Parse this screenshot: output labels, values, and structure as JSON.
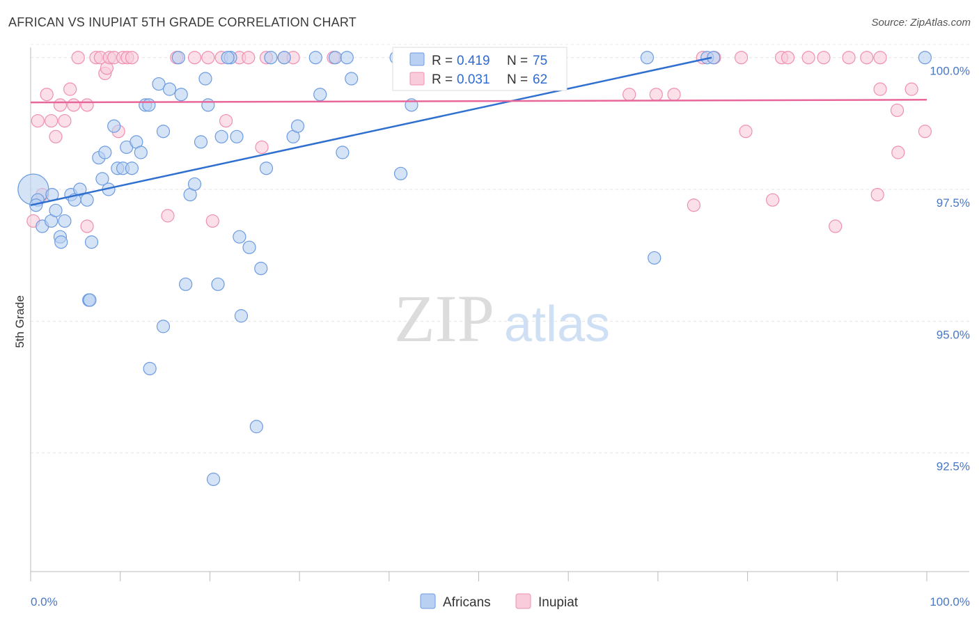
{
  "header": {
    "title": "AFRICAN VS INUPIAT 5TH GRADE CORRELATION CHART",
    "source": "Source: ZipAtlas.com"
  },
  "watermark": {
    "zip": "ZIP",
    "atlas": "atlas"
  },
  "colors": {
    "africans": "#6c9be0",
    "africans_fill": "#b9d0f2",
    "inupiat": "#f08fb0",
    "inupiat_fill": "#f9ccdb",
    "africans_line": "#2f6fd0",
    "inupiat_line": "#e8679a",
    "tick_label": "#4a77c4"
  },
  "legend": {
    "africans": {
      "r_label": "R = ",
      "r_value": "0.419",
      "n_label": "N = ",
      "n_value": "75"
    },
    "inupiat": {
      "r_label": "R = ",
      "r_value": "0.031",
      "n_label": "N = ",
      "n_value": "62"
    }
  },
  "chart_data": {
    "type": "scatter",
    "title": "AFRICAN VS INUPIAT 5TH GRADE CORRELATION CHART",
    "xlabel": "",
    "ylabel": "5th Grade",
    "xlim": [
      0,
      100
    ],
    "ylim": [
      90.25,
      100.3
    ],
    "x_tick_labels": [
      "0.0%",
      "100.0%"
    ],
    "y_ticks": [
      {
        "value": 100.0,
        "label": "100.0%"
      },
      {
        "value": 97.5,
        "label": "97.5%"
      },
      {
        "value": 95.0,
        "label": "95.0%"
      },
      {
        "value": 92.5,
        "label": "92.5%"
      }
    ],
    "grid": true,
    "legend_position": "top-center",
    "bottom_legend": [
      "Africans",
      "Inupiat"
    ],
    "series": [
      {
        "name": "Africans",
        "trend": [
          [
            0,
            97.2
          ],
          [
            76,
            100.0
          ]
        ],
        "points": [
          [
            0.3,
            97.5
          ],
          [
            0.8,
            97.3
          ],
          [
            1.3,
            96.8
          ],
          [
            2.4,
            97.4
          ],
          [
            2.3,
            96.9
          ],
          [
            2.8,
            97.1
          ],
          [
            3.3,
            96.6
          ],
          [
            3.8,
            96.9
          ],
          [
            4.5,
            97.4
          ],
          [
            4.9,
            97.3
          ],
          [
            5.5,
            97.5
          ],
          [
            6.3,
            97.3
          ],
          [
            6.8,
            96.5
          ],
          [
            6.5,
            95.4
          ],
          [
            7.6,
            98.1
          ],
          [
            8.0,
            97.7
          ],
          [
            8.3,
            98.2
          ],
          [
            8.7,
            97.5
          ],
          [
            9.3,
            98.7
          ],
          [
            9.7,
            97.9
          ],
          [
            10.3,
            97.9
          ],
          [
            10.7,
            98.3
          ],
          [
            11.3,
            97.9
          ],
          [
            11.8,
            98.4
          ],
          [
            12.3,
            98.2
          ],
          [
            12.8,
            99.1
          ],
          [
            13.2,
            99.1
          ],
          [
            14.3,
            99.5
          ],
          [
            14.8,
            98.6
          ],
          [
            15.5,
            99.4
          ],
          [
            16.5,
            100.0
          ],
          [
            16.8,
            99.3
          ],
          [
            17.3,
            95.7
          ],
          [
            17.8,
            97.4
          ],
          [
            18.3,
            97.6
          ],
          [
            19.0,
            98.4
          ],
          [
            19.5,
            99.6
          ],
          [
            19.8,
            99.1
          ],
          [
            20.4,
            92.0
          ],
          [
            20.9,
            95.7
          ],
          [
            21.3,
            98.5
          ],
          [
            22.3,
            100.0
          ],
          [
            23.0,
            98.5
          ],
          [
            23.5,
            95.1
          ],
          [
            23.3,
            96.6
          ],
          [
            24.4,
            96.4
          ],
          [
            25.2,
            93.0
          ],
          [
            25.7,
            96.0
          ],
          [
            26.3,
            97.9
          ],
          [
            26.8,
            100.0
          ],
          [
            28.3,
            100.0
          ],
          [
            29.3,
            98.5
          ],
          [
            29.8,
            98.7
          ],
          [
            31.8,
            100.0
          ],
          [
            32.3,
            99.3
          ],
          [
            34.0,
            100.0
          ],
          [
            34.8,
            98.2
          ],
          [
            35.3,
            100.0
          ],
          [
            35.8,
            99.6
          ],
          [
            40.8,
            100.0
          ],
          [
            41.3,
            97.8
          ],
          [
            42.5,
            99.1
          ],
          [
            43.5,
            100.0
          ],
          [
            46.0,
            100.0
          ],
          [
            68.8,
            100.0
          ],
          [
            69.6,
            96.2
          ],
          [
            75.5,
            100.0
          ],
          [
            76.2,
            100.0
          ],
          [
            99.8,
            100.0
          ],
          [
            14.8,
            94.9
          ],
          [
            13.3,
            94.1
          ],
          [
            22.0,
            100.0
          ],
          [
            0.6,
            97.2
          ],
          [
            3.4,
            96.5
          ],
          [
            6.6,
            95.4
          ]
        ]
      },
      {
        "name": "Inupiat",
        "trend": [
          [
            0,
            99.15
          ],
          [
            100,
            99.2
          ]
        ],
        "points": [
          [
            0.3,
            96.9
          ],
          [
            0.8,
            98.8
          ],
          [
            1.3,
            97.4
          ],
          [
            1.8,
            99.3
          ],
          [
            2.3,
            98.8
          ],
          [
            2.8,
            98.5
          ],
          [
            3.3,
            99.1
          ],
          [
            3.8,
            98.8
          ],
          [
            4.4,
            99.4
          ],
          [
            4.8,
            99.1
          ],
          [
            5.3,
            100.0
          ],
          [
            6.3,
            99.1
          ],
          [
            6.3,
            96.8
          ],
          [
            7.3,
            100.0
          ],
          [
            7.8,
            100.0
          ],
          [
            8.3,
            99.7
          ],
          [
            8.5,
            99.8
          ],
          [
            8.8,
            100.0
          ],
          [
            9.3,
            100.0
          ],
          [
            9.8,
            98.6
          ],
          [
            10.3,
            100.0
          ],
          [
            10.8,
            100.0
          ],
          [
            11.3,
            100.0
          ],
          [
            15.3,
            97.0
          ],
          [
            16.3,
            100.0
          ],
          [
            18.3,
            100.0
          ],
          [
            19.8,
            100.0
          ],
          [
            20.3,
            96.9
          ],
          [
            21.3,
            100.0
          ],
          [
            21.8,
            98.8
          ],
          [
            23.3,
            100.0
          ],
          [
            24.3,
            100.0
          ],
          [
            25.8,
            98.3
          ],
          [
            26.3,
            100.0
          ],
          [
            28.3,
            100.0
          ],
          [
            29.3,
            100.0
          ],
          [
            33.8,
            100.0
          ],
          [
            42.8,
            100.0
          ],
          [
            44.3,
            100.0
          ],
          [
            66.8,
            99.3
          ],
          [
            69.8,
            99.3
          ],
          [
            71.8,
            99.3
          ],
          [
            74.0,
            97.2
          ],
          [
            75.0,
            100.0
          ],
          [
            76.3,
            100.0
          ],
          [
            79.3,
            100.0
          ],
          [
            79.8,
            98.6
          ],
          [
            82.8,
            97.3
          ],
          [
            83.8,
            100.0
          ],
          [
            84.5,
            100.0
          ],
          [
            86.8,
            100.0
          ],
          [
            88.5,
            100.0
          ],
          [
            89.8,
            96.8
          ],
          [
            91.3,
            100.0
          ],
          [
            93.3,
            100.0
          ],
          [
            94.8,
            100.0
          ],
          [
            94.5,
            97.4
          ],
          [
            94.8,
            99.4
          ],
          [
            96.8,
            98.2
          ],
          [
            96.7,
            99.0
          ],
          [
            98.3,
            99.4
          ],
          [
            99.8,
            98.6
          ]
        ]
      }
    ]
  }
}
